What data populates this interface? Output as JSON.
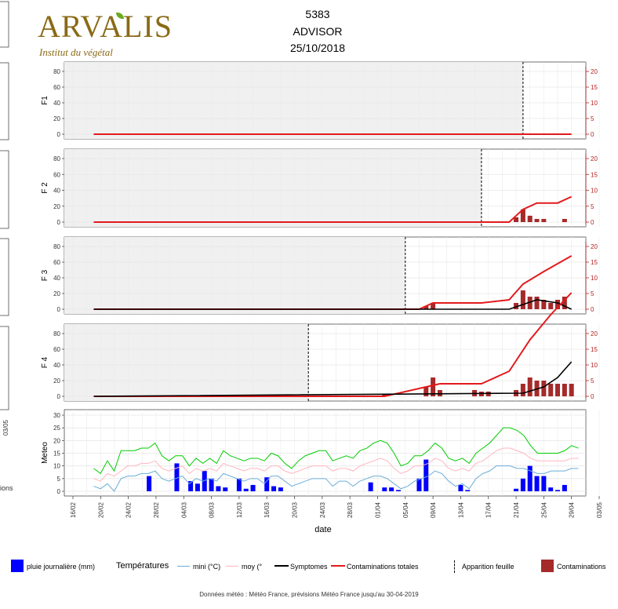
{
  "header": {
    "logo_text": "ARVALIS",
    "logo_subtitle": "Institut du végétal",
    "id": "5383",
    "variety": "ADVISOR",
    "sowing_date": "25/10/2018"
  },
  "colors": {
    "contamination_line": "#e31a1c",
    "symptoms_line": "#000000",
    "contamination_bars": "#a52a2a",
    "rain_bars": "#0000ff",
    "temp_max": "#00cc00",
    "temp_mean": "#ffb6c1",
    "temp_min": "#6baed6",
    "panel_bg": "#f0f0f0"
  },
  "chart_data": [
    {
      "type": "line",
      "panel": "F1",
      "ylabel": "F1",
      "yticks_left": [
        0,
        20,
        40,
        60,
        80
      ],
      "yticks_right": [
        0,
        5,
        10,
        15,
        20
      ],
      "leaf_appearance": "22/04",
      "contaminations_total": [
        {
          "x": "19/02",
          "y": 0
        },
        {
          "x": "29/04",
          "y": 0
        }
      ],
      "symptoms": [],
      "daily_contaminations": []
    },
    {
      "type": "line",
      "panel": "F2",
      "ylabel": "F 2",
      "yticks_left": [
        0,
        20,
        40,
        60,
        80
      ],
      "yticks_right": [
        0,
        5,
        10,
        15,
        20
      ],
      "leaf_appearance": "16/04",
      "contaminations_total": [
        {
          "x": "19/02",
          "y": 0
        },
        {
          "x": "20/04",
          "y": 0
        },
        {
          "x": "22/04",
          "y": 4
        },
        {
          "x": "24/04",
          "y": 6
        },
        {
          "x": "27/04",
          "y": 6
        },
        {
          "x": "29/04",
          "y": 8
        }
      ],
      "symptoms": [],
      "daily_contaminations": [
        {
          "x": "21/04",
          "y": 1.5
        },
        {
          "x": "22/04",
          "y": 4
        },
        {
          "x": "23/04",
          "y": 2
        },
        {
          "x": "24/04",
          "y": 1
        },
        {
          "x": "25/04",
          "y": 1
        },
        {
          "x": "28/04",
          "y": 1
        }
      ]
    },
    {
      "type": "line",
      "panel": "F3",
      "ylabel": "F 3",
      "yticks_left": [
        0,
        20,
        40,
        60,
        80
      ],
      "yticks_right": [
        0,
        5,
        10,
        15,
        20
      ],
      "leaf_appearance": "05/04",
      "contaminations_total": [
        {
          "x": "19/02",
          "y": 0
        },
        {
          "x": "07/04",
          "y": 0
        },
        {
          "x": "09/04",
          "y": 2
        },
        {
          "x": "16/04",
          "y": 2
        },
        {
          "x": "20/04",
          "y": 3
        },
        {
          "x": "22/04",
          "y": 8
        },
        {
          "x": "25/04",
          "y": 12
        },
        {
          "x": "29/04",
          "y": 17
        }
      ],
      "symptoms": [
        {
          "x": "19/02",
          "y": 0
        },
        {
          "x": "20/04",
          "y": 0
        },
        {
          "x": "24/04",
          "y": 3
        },
        {
          "x": "27/04",
          "y": 2
        },
        {
          "x": "29/04",
          "y": 0
        }
      ],
      "daily_contaminations": [
        {
          "x": "08/04",
          "y": 1
        },
        {
          "x": "09/04",
          "y": 2
        },
        {
          "x": "21/04",
          "y": 2
        },
        {
          "x": "22/04",
          "y": 6
        },
        {
          "x": "23/04",
          "y": 4
        },
        {
          "x": "24/04",
          "y": 4
        },
        {
          "x": "25/04",
          "y": 3
        },
        {
          "x": "26/04",
          "y": 2
        },
        {
          "x": "27/04",
          "y": 3
        },
        {
          "x": "28/04",
          "y": 4
        }
      ]
    },
    {
      "type": "line",
      "panel": "F4",
      "ylabel": "F 4",
      "yticks_left": [
        0,
        20,
        40,
        60,
        80
      ],
      "yticks_right": [
        0,
        5,
        10,
        15,
        20
      ],
      "leaf_appearance": "22/03",
      "contaminations_total": [
        {
          "x": "19/02",
          "y": 0
        },
        {
          "x": "02/04",
          "y": 0
        },
        {
          "x": "08/04",
          "y": 3
        },
        {
          "x": "10/04",
          "y": 4
        },
        {
          "x": "16/04",
          "y": 4
        },
        {
          "x": "20/04",
          "y": 8
        },
        {
          "x": "23/04",
          "y": 18
        },
        {
          "x": "26/04",
          "y": 26
        },
        {
          "x": "29/04",
          "y": 33
        }
      ],
      "symptoms": [
        {
          "x": "19/02",
          "y": 0
        },
        {
          "x": "22/04",
          "y": 1
        },
        {
          "x": "25/04",
          "y": 3
        },
        {
          "x": "27/04",
          "y": 6
        },
        {
          "x": "29/04",
          "y": 11
        }
      ],
      "daily_contaminations": [
        {
          "x": "02/04",
          "y": 0.5
        },
        {
          "x": "08/04",
          "y": 3
        },
        {
          "x": "09/04",
          "y": 6
        },
        {
          "x": "10/04",
          "y": 2
        },
        {
          "x": "15/04",
          "y": 2
        },
        {
          "x": "16/04",
          "y": 1.5
        },
        {
          "x": "17/04",
          "y": 1.5
        },
        {
          "x": "21/04",
          "y": 2
        },
        {
          "x": "22/04",
          "y": 4
        },
        {
          "x": "23/04",
          "y": 6
        },
        {
          "x": "24/04",
          "y": 5
        },
        {
          "x": "25/04",
          "y": 5
        },
        {
          "x": "26/04",
          "y": 4
        },
        {
          "x": "27/04",
          "y": 4
        },
        {
          "x": "28/04",
          "y": 4
        },
        {
          "x": "29/04",
          "y": 4
        }
      ]
    },
    {
      "type": "line",
      "panel": "Meteo",
      "ylabel": "Meteo",
      "xlabel": "date",
      "yticks_left": [
        0,
        5,
        10,
        15,
        20,
        25,
        30
      ],
      "x_ticks": [
        "16/02",
        "20/02",
        "24/02",
        "28/02",
        "04/03",
        "08/03",
        "12/03",
        "16/03",
        "20/03",
        "24/03",
        "28/03",
        "01/04",
        "05/04",
        "09/04",
        "13/04",
        "17/04",
        "21/04",
        "25/04",
        "29/04",
        "03/05"
      ],
      "temp_max": [
        9,
        7,
        12,
        8,
        16,
        16,
        16,
        17,
        17,
        19,
        14,
        12,
        14,
        14,
        10,
        13,
        11,
        13,
        11,
        16,
        14,
        13,
        12,
        13,
        13,
        12,
        15,
        14,
        11,
        9,
        12,
        14,
        15,
        16,
        16,
        12,
        13,
        14,
        13,
        16,
        17,
        19,
        20,
        19,
        15,
        10,
        11,
        14,
        14,
        16,
        19,
        17,
        13,
        12,
        13,
        11,
        15,
        17,
        19,
        22,
        25,
        25,
        24,
        22,
        18,
        15,
        15,
        15,
        15,
        16,
        18,
        17
      ],
      "temp_mean": [
        5,
        4,
        7,
        6,
        8,
        10,
        10,
        11,
        11,
        12,
        9,
        8,
        9,
        10,
        7,
        9,
        8,
        9,
        8,
        11,
        10,
        9,
        8,
        9,
        9,
        8,
        10,
        10,
        8,
        7,
        8,
        9,
        10,
        10,
        10,
        8,
        9,
        9,
        8,
        10,
        11,
        12,
        13,
        12,
        9,
        7,
        8,
        10,
        10,
        11,
        13,
        12,
        9,
        8,
        9,
        8,
        11,
        12,
        14,
        16,
        17,
        17,
        16,
        15,
        13,
        12,
        12,
        12,
        12,
        12,
        13,
        13
      ],
      "temp_min": [
        2,
        1,
        3,
        0,
        5,
        6,
        6,
        7,
        7,
        8,
        5,
        4,
        5,
        6,
        3,
        5,
        4,
        5,
        4,
        7,
        6,
        5,
        4,
        5,
        5,
        3,
        6,
        6,
        4,
        2,
        3,
        4,
        5,
        5,
        5,
        2,
        4,
        4,
        2,
        4,
        5,
        6,
        6,
        5,
        3,
        1,
        2,
        4,
        5,
        6,
        8,
        7,
        4,
        2,
        3,
        1,
        5,
        7,
        8,
        10,
        10,
        10,
        9,
        9,
        8,
        7,
        7,
        8,
        8,
        8,
        9,
        9
      ],
      "rain": [
        {
          "x": "27/02",
          "y": 6
        },
        {
          "x": "03/03",
          "y": 11
        },
        {
          "x": "05/03",
          "y": 4
        },
        {
          "x": "06/03",
          "y": 3
        },
        {
          "x": "07/03",
          "y": 8
        },
        {
          "x": "08/03",
          "y": 5
        },
        {
          "x": "09/03",
          "y": 2
        },
        {
          "x": "10/03",
          "y": 1.5
        },
        {
          "x": "12/03",
          "y": 5
        },
        {
          "x": "13/03",
          "y": 1
        },
        {
          "x": "14/03",
          "y": 2.5
        },
        {
          "x": "16/03",
          "y": 5.5
        },
        {
          "x": "17/03",
          "y": 2
        },
        {
          "x": "18/03",
          "y": 1.5
        },
        {
          "x": "31/03",
          "y": 3.5
        },
        {
          "x": "02/04",
          "y": 1.5
        },
        {
          "x": "03/04",
          "y": 1.5
        },
        {
          "x": "04/04",
          "y": 0.5
        },
        {
          "x": "07/04",
          "y": 5
        },
        {
          "x": "08/04",
          "y": 12.5
        },
        {
          "x": "13/04",
          "y": 2.5
        },
        {
          "x": "14/04",
          "y": 0.5
        },
        {
          "x": "21/04",
          "y": 1
        },
        {
          "x": "22/04",
          "y": 5
        },
        {
          "x": "23/04",
          "y": 10
        },
        {
          "x": "24/04",
          "y": 6
        },
        {
          "x": "25/04",
          "y": 6
        },
        {
          "x": "26/04",
          "y": 1.5
        },
        {
          "x": "27/04",
          "y": 0.5
        },
        {
          "x": "28/04",
          "y": 2.5
        }
      ]
    }
  ],
  "legend": {
    "rain": "pluie journalière (mm)",
    "temperatures": "Températures",
    "min": "mini (°C)",
    "mean": "moy (°",
    "symptoms": "Symptomes",
    "contam_total": "Contaminations totales",
    "leaf": "Apparition feuille",
    "contam_daily": "Contaminations"
  },
  "left_edge": {
    "date_label": "03/05",
    "legend_fragment": "ions"
  },
  "footnote": "Données météo : Météo France, prévisions Météo France jusqu'au 30-04-2019"
}
